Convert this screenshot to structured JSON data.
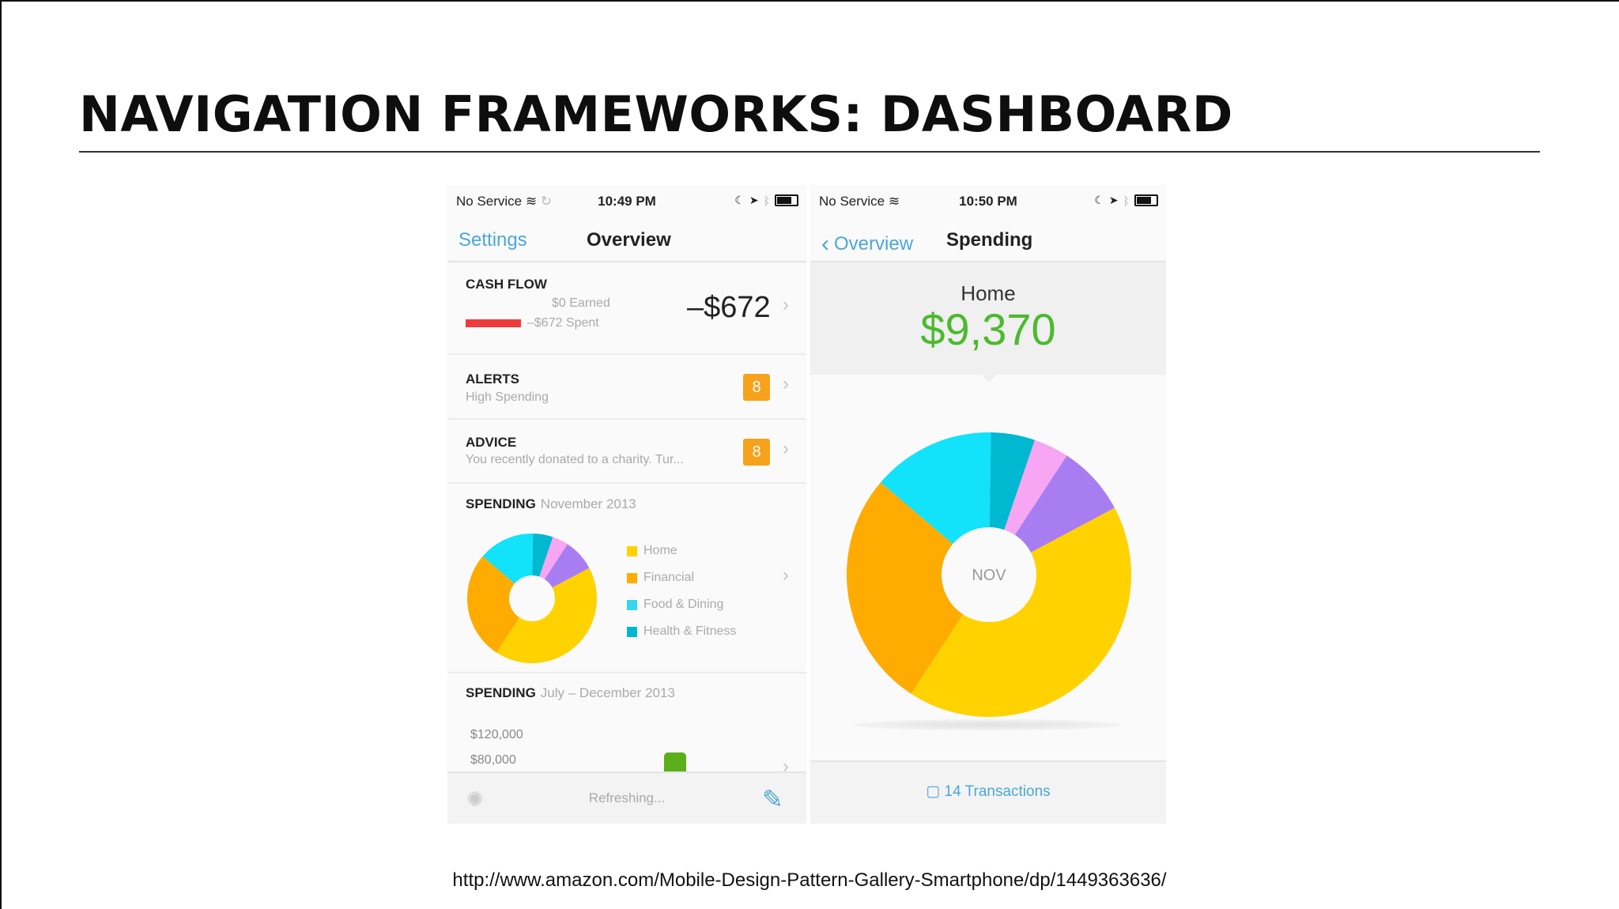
{
  "slide": {
    "title": "NAVIGATION FRAMEWORKS: DASHBOARD",
    "source_url": "http://www.amazon.com/Mobile-Design-Pattern-Gallery-Smartphone/dp/1449363636/"
  },
  "overview_screen": {
    "status": {
      "carrier": "No Service",
      "time": "10:49 PM"
    },
    "nav": {
      "back_label": "Settings",
      "title": "Overview"
    },
    "cash_flow": {
      "label": "CASH FLOW",
      "earned": "$0 Earned",
      "spent": "–$672 Spent",
      "total": "–$672"
    },
    "alerts": {
      "label": "ALERTS",
      "subtitle": "High Spending",
      "count": "8"
    },
    "advice": {
      "label": "ADVICE",
      "subtitle": "You recently donated to a charity. Tur...",
      "count": "8"
    },
    "spending_month": {
      "label": "SPENDING",
      "period": "November 2013",
      "legend": [
        {
          "name": "Home",
          "color": "#ffd200"
        },
        {
          "name": "Financial",
          "color": "#ffab00"
        },
        {
          "name": "Food & Dining",
          "color": "#35d6f0"
        },
        {
          "name": "Health & Fitness",
          "color": "#00b8cf"
        }
      ]
    },
    "spending_range": {
      "label": "SPENDING",
      "period": "July – December 2013",
      "axis_labels": [
        "$120,000",
        "$80,000"
      ],
      "bar_color": "#5aaf1a"
    },
    "toolbar": {
      "status": "Refreshing..."
    }
  },
  "spending_screen": {
    "status": {
      "carrier": "No Service",
      "time": "10:50 PM"
    },
    "nav": {
      "back_label": "Overview",
      "title": "Spending"
    },
    "category": "Home",
    "amount": "$9,370",
    "amount_color": "#4cba2f",
    "center_label": "NOV",
    "transactions_link": "14 Transactions"
  },
  "chart_data": {
    "type": "pie",
    "categories": [
      "Home",
      "Financial",
      "Food & Dining",
      "Health & Fitness",
      "Other (pink)",
      "Other (purple)"
    ],
    "values": [
      42,
      27,
      14,
      5,
      4,
      8
    ],
    "colors": [
      "#ffd200",
      "#ffab00",
      "#12e2fa",
      "#00b8cf",
      "#f6a6f2",
      "#a97df2"
    ]
  }
}
